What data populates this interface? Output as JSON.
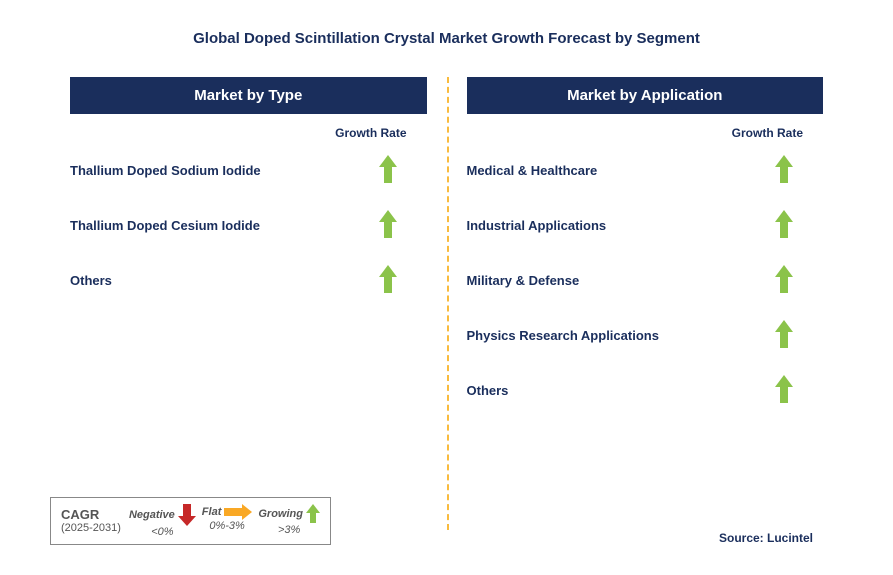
{
  "title": "Global Doped Scintillation Crystal Market Growth Forecast by Segment",
  "title_color": "#1a2e5c",
  "title_fontsize": 15,
  "header_bg": "#1a2e5c",
  "label_color": "#1a2e5c",
  "growth_label": "Growth Rate",
  "arrow_up_color": "#8bc34a",
  "arrow_down_color": "#c62828",
  "arrow_right_color": "#f9a825",
  "divider_color": "#f9bb3e",
  "left": {
    "header": "Market by Type",
    "items": [
      {
        "label": "Thallium Doped Sodium Iodide",
        "trend": "up"
      },
      {
        "label": "Thallium Doped Cesium Iodide",
        "trend": "up"
      },
      {
        "label": "Others",
        "trend": "up"
      }
    ]
  },
  "right": {
    "header": "Market by Application",
    "items": [
      {
        "label": "Medical & Healthcare",
        "trend": "up"
      },
      {
        "label": "Industrial Applications",
        "trend": "up"
      },
      {
        "label": "Military & Defense",
        "trend": "up"
      },
      {
        "label": "Physics Research Applications",
        "trend": "up"
      },
      {
        "label": "Others",
        "trend": "up"
      }
    ]
  },
  "legend": {
    "cagr_label": "CAGR",
    "cagr_years": "(2025-2031)",
    "items": [
      {
        "label": "Negative",
        "range": "<0%",
        "icon": "down"
      },
      {
        "label": "Flat",
        "range": "0%-3%",
        "icon": "right"
      },
      {
        "label": "Growing",
        "range": ">3%",
        "icon": "up"
      }
    ]
  },
  "source": "Source: Lucintel"
}
